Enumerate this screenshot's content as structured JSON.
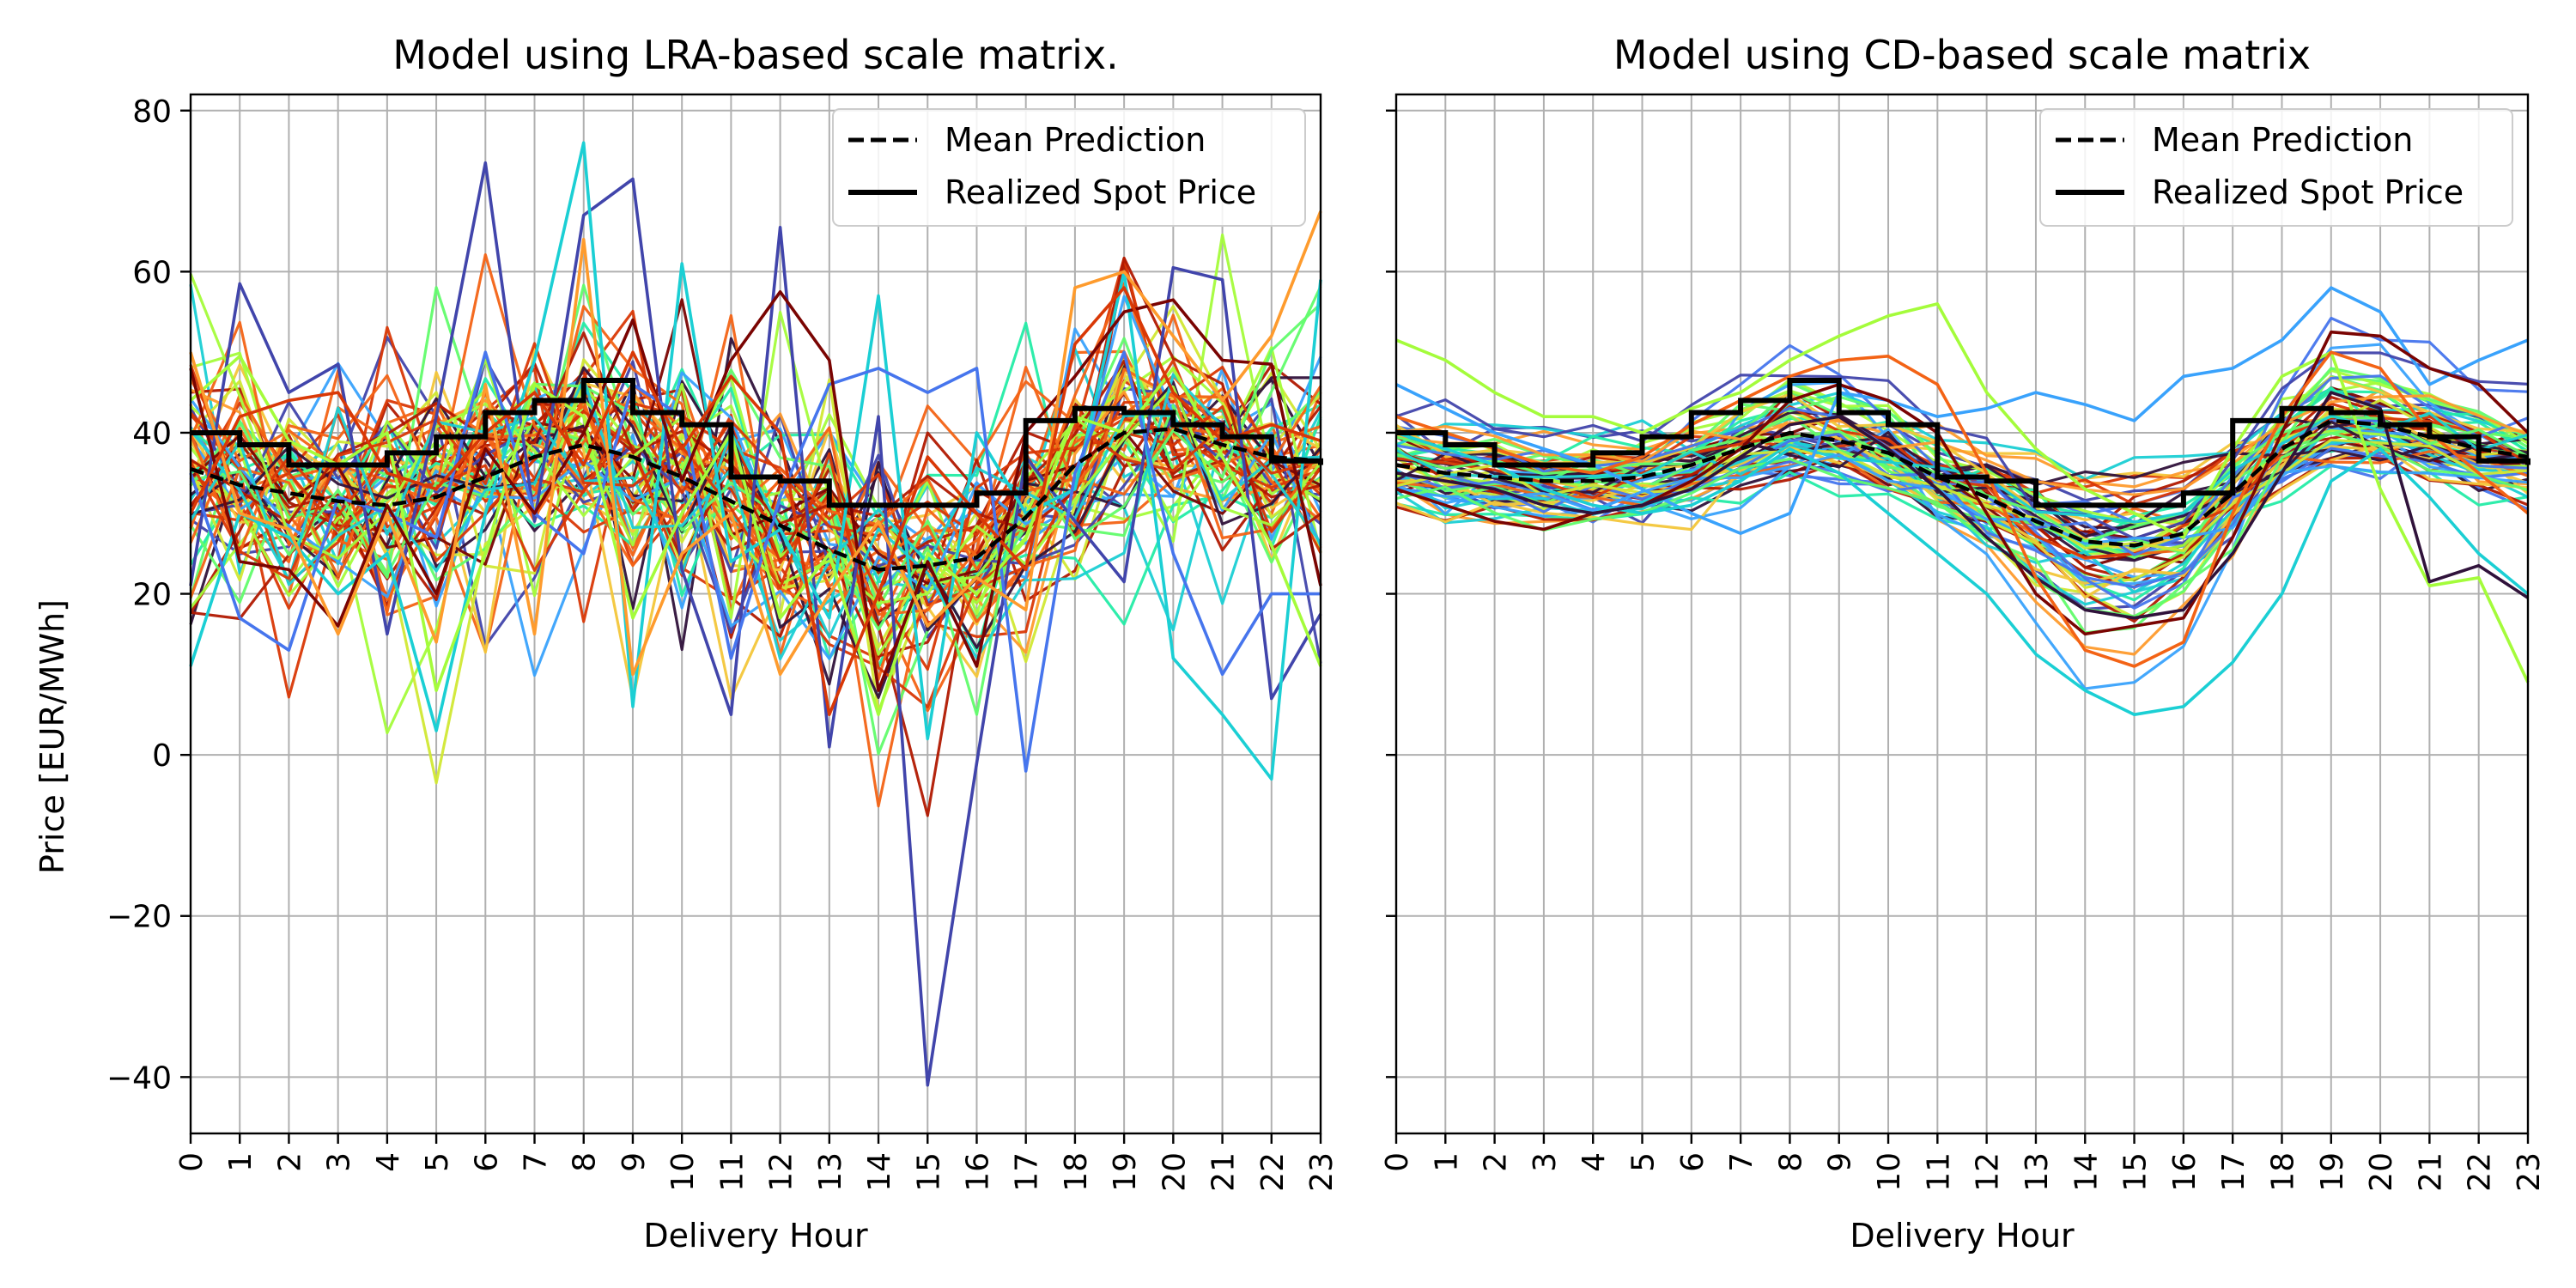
{
  "chart_data": [
    {
      "type": "line",
      "title": "Model using LRA-based scale matrix.",
      "xlabel": "Delivery Hour",
      "ylabel": "Price [EUR/MWh]",
      "x": [
        0,
        1,
        2,
        3,
        4,
        5,
        6,
        7,
        8,
        9,
        10,
        11,
        12,
        13,
        14,
        15,
        16,
        17,
        18,
        19,
        20,
        21,
        22,
        23
      ],
      "xlim": [
        0,
        23
      ],
      "ylim": [
        -47,
        82
      ],
      "yticks": [
        -40,
        -20,
        0,
        20,
        40,
        60,
        80
      ],
      "ytick_labels": [
        "−40",
        "−20",
        "0",
        "20",
        "40",
        "60",
        "80"
      ],
      "grid": true,
      "legend": {
        "position": "top-right",
        "entries": [
          "Mean Prediction",
          "Realized Spot Price"
        ]
      },
      "mean_prediction": [
        35.5,
        33.5,
        32.5,
        31.5,
        31,
        32,
        34.5,
        37,
        38.5,
        37,
        34.5,
        31.5,
        28.5,
        25.5,
        23,
        23.5,
        24.5,
        29.5,
        36,
        40,
        40.5,
        38.5,
        37,
        36.5
      ],
      "realized_spot_price": [
        40,
        38.5,
        36,
        36,
        37.5,
        39.5,
        42.5,
        44,
        46.5,
        42.5,
        41,
        34.5,
        34,
        31,
        31,
        31,
        32.5,
        41.5,
        43,
        42.5,
        41,
        39.5,
        36.5,
        36
      ],
      "scenario_lines": {
        "count": 60,
        "color_scale": [
          "#30123b",
          "#4145ab",
          "#4675ed",
          "#39a2fc",
          "#1bcfd4",
          "#24eca6",
          "#61fc6c",
          "#a4fc3b",
          "#d1e834",
          "#f3c63a",
          "#fe9b2d",
          "#f36315",
          "#d93806",
          "#b11901",
          "#7a0402"
        ],
        "highlighted": [
          {
            "color": "#4145ab",
            "values": [
              21,
              58.5,
              45,
              48.5,
              15,
              42,
              73.5,
              29,
              67,
              71.5,
              23,
              5,
              65.5,
              1,
              42,
              -41,
              -1,
              37,
              29,
              21.5,
              60.5,
              59,
              7,
              17.5
            ]
          },
          {
            "color": "#1bcfd4",
            "values": [
              11,
              30,
              27,
              20,
              25,
              3,
              30,
              49,
              76,
              6,
              61,
              24,
              28,
              17,
              57,
              2,
              40,
              30,
              33,
              60,
              12,
              5,
              -3,
              59
            ]
          },
          {
            "color": "#4675ed",
            "values": [
              35,
              17,
              13,
              32,
              30,
              27,
              50,
              30,
              25,
              46,
              42,
              12,
              32,
              46,
              48,
              45,
              48,
              -2,
              35,
              50,
              25,
              10,
              20,
              20
            ]
          },
          {
            "color": "#a4fc3b",
            "values": [
              44,
              49.5,
              39,
              36,
              40,
              8,
              25,
              46,
              42,
              17,
              30,
              40,
              17,
              25,
              5,
              25,
              20,
              27,
              42,
              40,
              48,
              37,
              26,
              11
            ]
          },
          {
            "color": "#7a0402",
            "values": [
              48,
              24,
              23,
              16,
              31,
              20,
              38,
              30,
              40,
              54,
              34,
              49,
              57.5,
              49,
              8,
              24,
              11,
              40,
              47,
              55,
              56.5,
              49,
              48.5,
              21
            ]
          },
          {
            "color": "#fe9b2d",
            "values": [
              50,
              30,
              28,
              15,
              30,
              14,
              46,
              15,
              64,
              10,
              25,
              30,
              10,
              20,
              29,
              16,
              22,
              18,
              58,
              60,
              52,
              44,
              52,
              67.5
            ]
          },
          {
            "color": "#d93806",
            "values": [
              30,
              42,
              44,
              45,
              35,
              33,
              40,
              45,
              36,
              50,
              38,
              47,
              40,
              5,
              20,
              37,
              30,
              23,
              51,
              58,
              45,
              39,
              41,
              39
            ]
          }
        ]
      }
    },
    {
      "type": "line",
      "title": "Model using CD-based scale matrix",
      "xlabel": "Delivery Hour",
      "ylabel": "",
      "x": [
        0,
        1,
        2,
        3,
        4,
        5,
        6,
        7,
        8,
        9,
        10,
        11,
        12,
        13,
        14,
        15,
        16,
        17,
        18,
        19,
        20,
        21,
        22,
        23
      ],
      "xlim": [
        0,
        23
      ],
      "ylim": [
        -47,
        82
      ],
      "grid": true,
      "legend": {
        "position": "top-right",
        "entries": [
          "Mean Prediction",
          "Realized Spot Price"
        ]
      },
      "mean_prediction": [
        36,
        35,
        34.5,
        34,
        34,
        34.5,
        36,
        38,
        40,
        39,
        37.5,
        34.5,
        32,
        29,
        26.5,
        26,
        27.5,
        32.5,
        38,
        41.5,
        41,
        39.5,
        38,
        37
      ],
      "realized_spot_price": [
        40,
        38.5,
        36,
        36,
        37.5,
        39.5,
        42.5,
        44,
        46.5,
        42.5,
        41,
        34.5,
        34,
        31,
        31,
        31,
        32.5,
        41.5,
        43,
        42.5,
        41,
        39.5,
        36.5,
        36
      ],
      "scenario_lines": {
        "count": 60,
        "color_scale": [
          "#30123b",
          "#4145ab",
          "#4675ed",
          "#39a2fc",
          "#1bcfd4",
          "#24eca6",
          "#61fc6c",
          "#a4fc3b",
          "#d1e834",
          "#f3c63a",
          "#fe9b2d",
          "#f36315",
          "#d93806",
          "#b11901",
          "#7a0402"
        ],
        "highlighted": [
          {
            "color": "#a4fc3b",
            "values": [
              51.5,
              49,
              45,
              42,
              42,
              40,
              43,
              45,
              49,
              52,
              54.5,
              56,
              45,
              38,
              33,
              30,
              27,
              38,
              47,
              50,
              33,
              21,
              22,
              9
            ]
          },
          {
            "color": "#39a2fc",
            "values": [
              46,
              43,
              40,
              38,
              36,
              33,
              30,
              27.5,
              30,
              45,
              44,
              42,
              43,
              45,
              43.5,
              41.5,
              47,
              48,
              51.5,
              58,
              55,
              46,
              49,
              51.5
            ]
          },
          {
            "color": "#1bcfd4",
            "values": [
              40,
              38,
              36,
              33,
              31,
              30,
              31,
              34,
              38,
              35,
              30,
              25,
              20,
              12.5,
              8,
              5,
              6,
              11.5,
              20,
              34,
              38,
              32,
              25,
              20
            ]
          },
          {
            "color": "#7a0402",
            "values": [
              33,
              31,
              29,
              28,
              30,
              31,
              34,
              38,
              44,
              46,
              44,
              40,
              30,
              20,
              15,
              16,
              17,
              27,
              40,
              52.5,
              52,
              48,
              46,
              40
            ]
          },
          {
            "color": "#30123b",
            "values": [
              35,
              34,
              33,
              31,
              30,
              31,
              33,
              37,
              41,
              42,
              38,
              33,
              27,
              22,
              18,
              17,
              18,
              25,
              35,
              45,
              43,
              21.5,
              23.5,
              19.5
            ]
          },
          {
            "color": "#f36315",
            "values": [
              42,
              40,
              38,
              36,
              35,
              37,
              41,
              44,
              47,
              49,
              49.5,
              46,
              35,
              22,
              13,
              11,
              14,
              30,
              42,
              50,
              48,
              40,
              35,
              30
            ]
          }
        ]
      }
    }
  ]
}
